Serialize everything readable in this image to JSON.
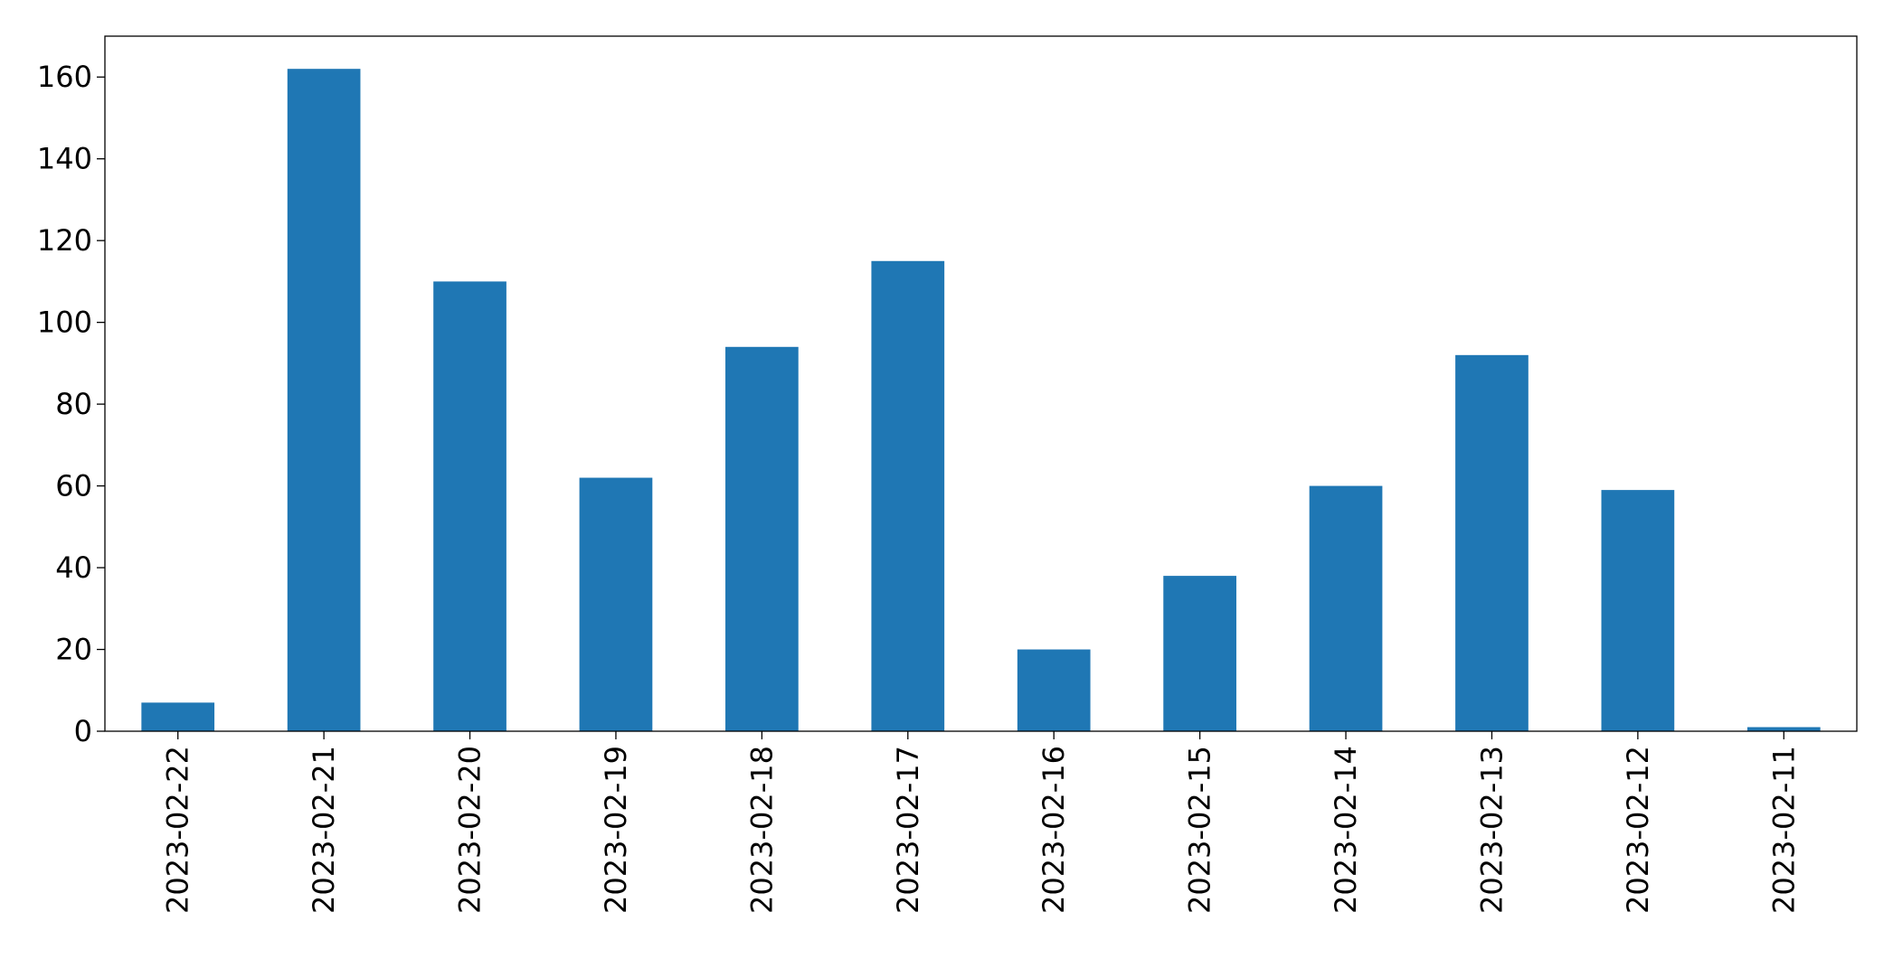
{
  "chart_data": {
    "type": "bar",
    "categories": [
      "2023-02-22",
      "2023-02-21",
      "2023-02-20",
      "2023-02-19",
      "2023-02-18",
      "2023-02-17",
      "2023-02-16",
      "2023-02-15",
      "2023-02-14",
      "2023-02-13",
      "2023-02-12",
      "2023-02-11"
    ],
    "values": [
      7,
      162,
      110,
      62,
      94,
      115,
      20,
      38,
      60,
      92,
      59,
      1
    ],
    "color": "#1f77b4",
    "ylim": [
      0,
      170
    ],
    "yticks": [
      0,
      20,
      40,
      60,
      80,
      100,
      120,
      140,
      160
    ],
    "grid": false
  }
}
